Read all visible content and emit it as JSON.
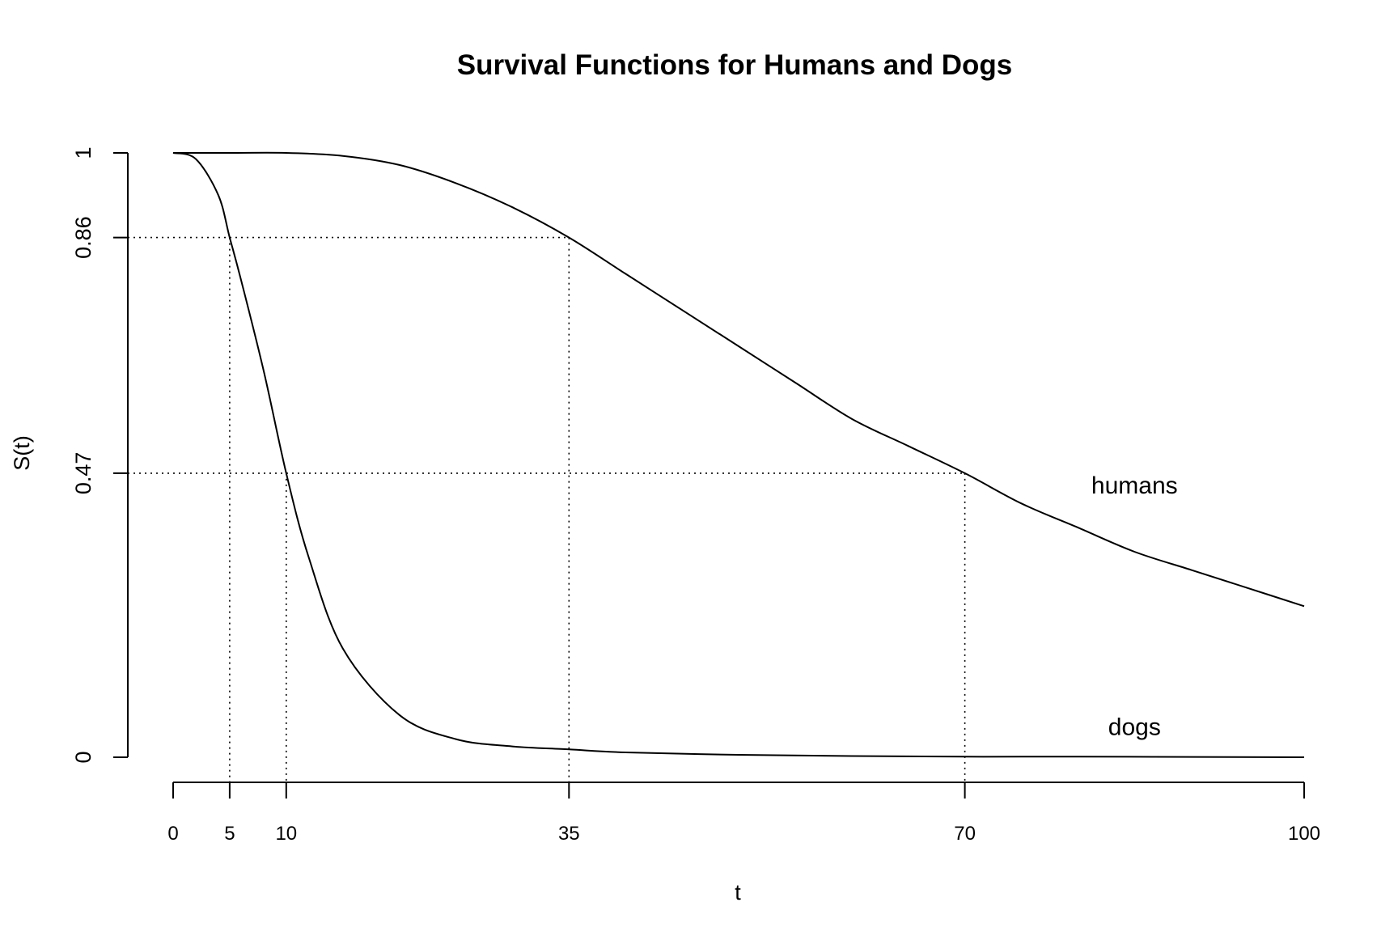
{
  "chart_data": {
    "type": "line",
    "title": "Survival Functions for Humans and Dogs",
    "xlabel": "t",
    "ylabel": "S(t)",
    "xlim": [
      0,
      100
    ],
    "ylim": [
      0,
      1
    ],
    "x_ticks": [
      0,
      5,
      10,
      35,
      70,
      100
    ],
    "x_tick_labels": [
      "0",
      "5",
      "10",
      "35",
      "70",
      "100"
    ],
    "y_ticks": [
      0,
      0.47,
      0.86,
      1
    ],
    "y_tick_labels": [
      "0",
      "0.47",
      "0.86",
      "1"
    ],
    "grid": false,
    "legend": "none",
    "series": [
      {
        "name": "humans",
        "x": [
          0,
          5,
          10,
          15,
          20,
          25,
          30,
          35,
          40,
          45,
          50,
          55,
          60,
          65,
          70,
          75,
          80,
          85,
          90,
          95,
          100
        ],
        "values": [
          1.0,
          1.0,
          1.0,
          0.995,
          0.98,
          0.95,
          0.91,
          0.86,
          0.8,
          0.74,
          0.68,
          0.62,
          0.56,
          0.515,
          0.47,
          0.42,
          0.38,
          0.34,
          0.31,
          0.28,
          0.25
        ],
        "label_at": [
          85,
          0.45
        ]
      },
      {
        "name": "dogs",
        "x": [
          0,
          2,
          4,
          5,
          6,
          8,
          10,
          12,
          15,
          20,
          25,
          30,
          35,
          40,
          50,
          60,
          70,
          80,
          90,
          100
        ],
        "values": [
          1.0,
          0.99,
          0.93,
          0.86,
          0.79,
          0.64,
          0.47,
          0.33,
          0.18,
          0.07,
          0.03,
          0.018,
          0.013,
          0.008,
          0.004,
          0.002,
          0.001,
          0.001,
          0.0005,
          0.0
        ],
        "label_at": [
          85,
          0.05
        ]
      }
    ],
    "reference_lines": [
      {
        "y": 0.86,
        "x_points": [
          5,
          35
        ]
      },
      {
        "y": 0.47,
        "x_points": [
          10,
          70
        ]
      }
    ]
  }
}
